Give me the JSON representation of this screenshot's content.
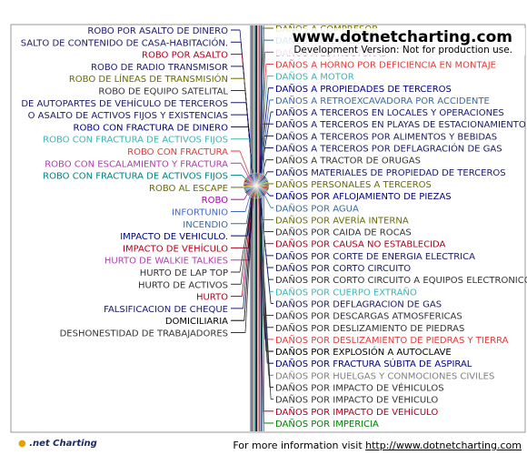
{
  "watermark": {
    "title": "www.dotnetcharting.com",
    "subtitle": "Development Version: Not for production use."
  },
  "footer": {
    "logo_text": ".net Charting",
    "info_text": "For more information visit",
    "link_text": "http://www.dotnetcharting.com"
  },
  "colors": {
    "frame": "#999999",
    "axis": "#000000"
  },
  "chart_data": {
    "type": "pie",
    "title": "",
    "left_labels": [
      {
        "text": "ROBO POR ASALTO DE DINERO",
        "color": "#1a1a66"
      },
      {
        "text": "SALTO DE CONTENIDO DE CASA-HABITACIÓN.",
        "color": "#1a1a66"
      },
      {
        "text": "ROBO POR ASALTO",
        "color": "#b00020"
      },
      {
        "text": "ROBO DE RADIO TRANSMISOR",
        "color": "#1a1a66"
      },
      {
        "text": "ROBO DE LÍNEAS DE TRANSMISIÓN",
        "color": "#6b6b00"
      },
      {
        "text": "ROBO DE EQUIPO SATELITAL",
        "color": "#333333"
      },
      {
        "text": "DE AUTOPARTES DE VEHÍCULO DE TERCEROS",
        "color": "#1a1a66"
      },
      {
        "text": "O ASALTO DE ACTIVOS FIJOS Y EXISTENCIAS",
        "color": "#1a1a66"
      },
      {
        "text": "ROBO CON FRACTURA DE DINERO",
        "color": "#000080"
      },
      {
        "text": "ROBO CON FRACTURA DE ACTIVOS FIJOS",
        "color": "#3cb4b4"
      },
      {
        "text": "ROBO CON FRACTURA",
        "color": "#e03c3c"
      },
      {
        "text": "ROBO CON ESCALAMIENTO Y FRACTURA",
        "color": "#b03cb0"
      },
      {
        "text": "ROBO CON  FRACTURA  DE ACTIVOS FIJOS",
        "color": "#008080"
      },
      {
        "text": "ROBO AL ESCAPE",
        "color": "#6b6b00"
      },
      {
        "text": "ROBO",
        "color": "#b000b0"
      },
      {
        "text": "INFORTUNIO",
        "color": "#4466cc"
      },
      {
        "text": "INCENDIO",
        "color": "#3a6a9a"
      },
      {
        "text": "IMPACTO DE VEHICULO.",
        "color": "#000080"
      },
      {
        "text": "IMPACTO DE VEHÍCULO",
        "color": "#b00020"
      },
      {
        "text": "HURTO DE WALKIE TALKIES",
        "color": "#b03cb0"
      },
      {
        "text": "HURTO DE LAP TOP",
        "color": "#333333"
      },
      {
        "text": "HURTO DE ACTIVOS",
        "color": "#333333"
      },
      {
        "text": "HURTO",
        "color": "#b00020"
      },
      {
        "text": "FALSIFICACION DE CHEQUE",
        "color": "#1a1a66"
      },
      {
        "text": "DOMICILIARIA",
        "color": "#000000"
      },
      {
        "text": "DESHONESTIDAD DE TRABAJADORES",
        "color": "#333333"
      }
    ],
    "right_labels": [
      {
        "text": "DAÑOS A COMPRESOR",
        "color": "#6b6b00"
      },
      {
        "text": "DAÑOS A ELEVADOR",
        "color": "#3a6a9a"
      },
      {
        "text": "DAÑOS A ESTRUCTURAS",
        "color": "#b03cb0"
      },
      {
        "text": "DAÑOS A HORNO POR DEFICIENCIA EN MONTAJE",
        "color": "#e03c3c"
      },
      {
        "text": "DAÑOS A MOTOR",
        "color": "#3cb4b4"
      },
      {
        "text": "DAÑOS A PROPIEDADES DE TERCEROS",
        "color": "#000080"
      },
      {
        "text": "DAÑOS A RETROEXCAVADORA POR ACCIDENTE",
        "color": "#3a6a9a"
      },
      {
        "text": "DAÑOS A TERCEROS EN  LOCALES Y OPERACIONES",
        "color": "#1a1a66"
      },
      {
        "text": "DAÑOS A TERCEROS EN  PLAYAS DE ESTACIONAMIENTO",
        "color": "#1a1a66"
      },
      {
        "text": "DAÑOS A TERCEROS POR ALIMENTOS Y BEBIDAS",
        "color": "#1a1a66"
      },
      {
        "text": "DAÑOS A TERCEROS POR DEFLAGRACIÓN DE GAS",
        "color": "#1a1a66"
      },
      {
        "text": "DAÑOS A TRACTOR DE ORUGAS",
        "color": "#333333"
      },
      {
        "text": "DAÑOS MATERIALES DE PROPIEDAD DE TERCEROS",
        "color": "#1a1a66"
      },
      {
        "text": "DAÑOS PERSONALES A TERCEROS",
        "color": "#6b6b00"
      },
      {
        "text": "DAÑOS POR AFLOJAMIENTO DE PIEZAS",
        "color": "#000080"
      },
      {
        "text": "DAÑOS POR AGUA",
        "color": "#3a6a9a"
      },
      {
        "text": "DAÑOS POR AVERÍA INTERNA",
        "color": "#6b6b00"
      },
      {
        "text": "DAÑOS POR CAIDA DE ROCAS",
        "color": "#333333"
      },
      {
        "text": "DAÑOS POR CAUSA NO ESTABLECIDA",
        "color": "#b00020"
      },
      {
        "text": "DAÑOS POR CORTE DE ENERGIA ELECTRICA",
        "color": "#1a1a66"
      },
      {
        "text": "DAÑOS POR CORTO CIRCUITO",
        "color": "#1a1a66"
      },
      {
        "text": "DAÑOS POR CORTO CIRCUITO A EQUIPOS ELECTRONICOS",
        "color": "#333333"
      },
      {
        "text": "DAÑOS POR CUERPO EXTRAÑO",
        "color": "#3cb4b4"
      },
      {
        "text": "DAÑOS POR DEFLAGRACION DE GAS",
        "color": "#1a1a66"
      },
      {
        "text": "DAÑOS POR DESCARGAS ATMOSFERICAS",
        "color": "#333333"
      },
      {
        "text": "DAÑOS POR DESLIZAMIENTO DE PIEDRAS",
        "color": "#333333"
      },
      {
        "text": "DAÑOS POR DESLIZAMIENTO DE PIEDRAS Y TIERRA",
        "color": "#e03c3c"
      },
      {
        "text": "DAÑOS POR EXPLOSIÓN A AUTOCLAVE",
        "color": "#000000"
      },
      {
        "text": "DAÑOS POR FRACTURA SÚBITA DE ASPIRAL",
        "color": "#000080"
      },
      {
        "text": "DAÑOS POR HUELGAS Y CONMOCIONES CIVILES",
        "color": "#808080"
      },
      {
        "text": "DAÑOS POR IMPACTO DE  VÉHICULOS",
        "color": "#333333"
      },
      {
        "text": "DAÑOS POR IMPACTO DE VEHICULO",
        "color": "#333333"
      },
      {
        "text": "DAÑOS POR IMPACTO DE VEHÍCULO",
        "color": "#b00020"
      },
      {
        "text": "DAÑOS POR IMPERICIA",
        "color": "#008000"
      }
    ],
    "slice_colors": [
      "#1a1a66",
      "#b00020",
      "#6b6b00",
      "#3cb4b4",
      "#b03cb0",
      "#e03c3c",
      "#008080",
      "#000080",
      "#3a6a9a",
      "#808080",
      "#4466cc",
      "#008000",
      "#c8a000",
      "#333333",
      "#6a2a8a",
      "#cc6600"
    ]
  }
}
